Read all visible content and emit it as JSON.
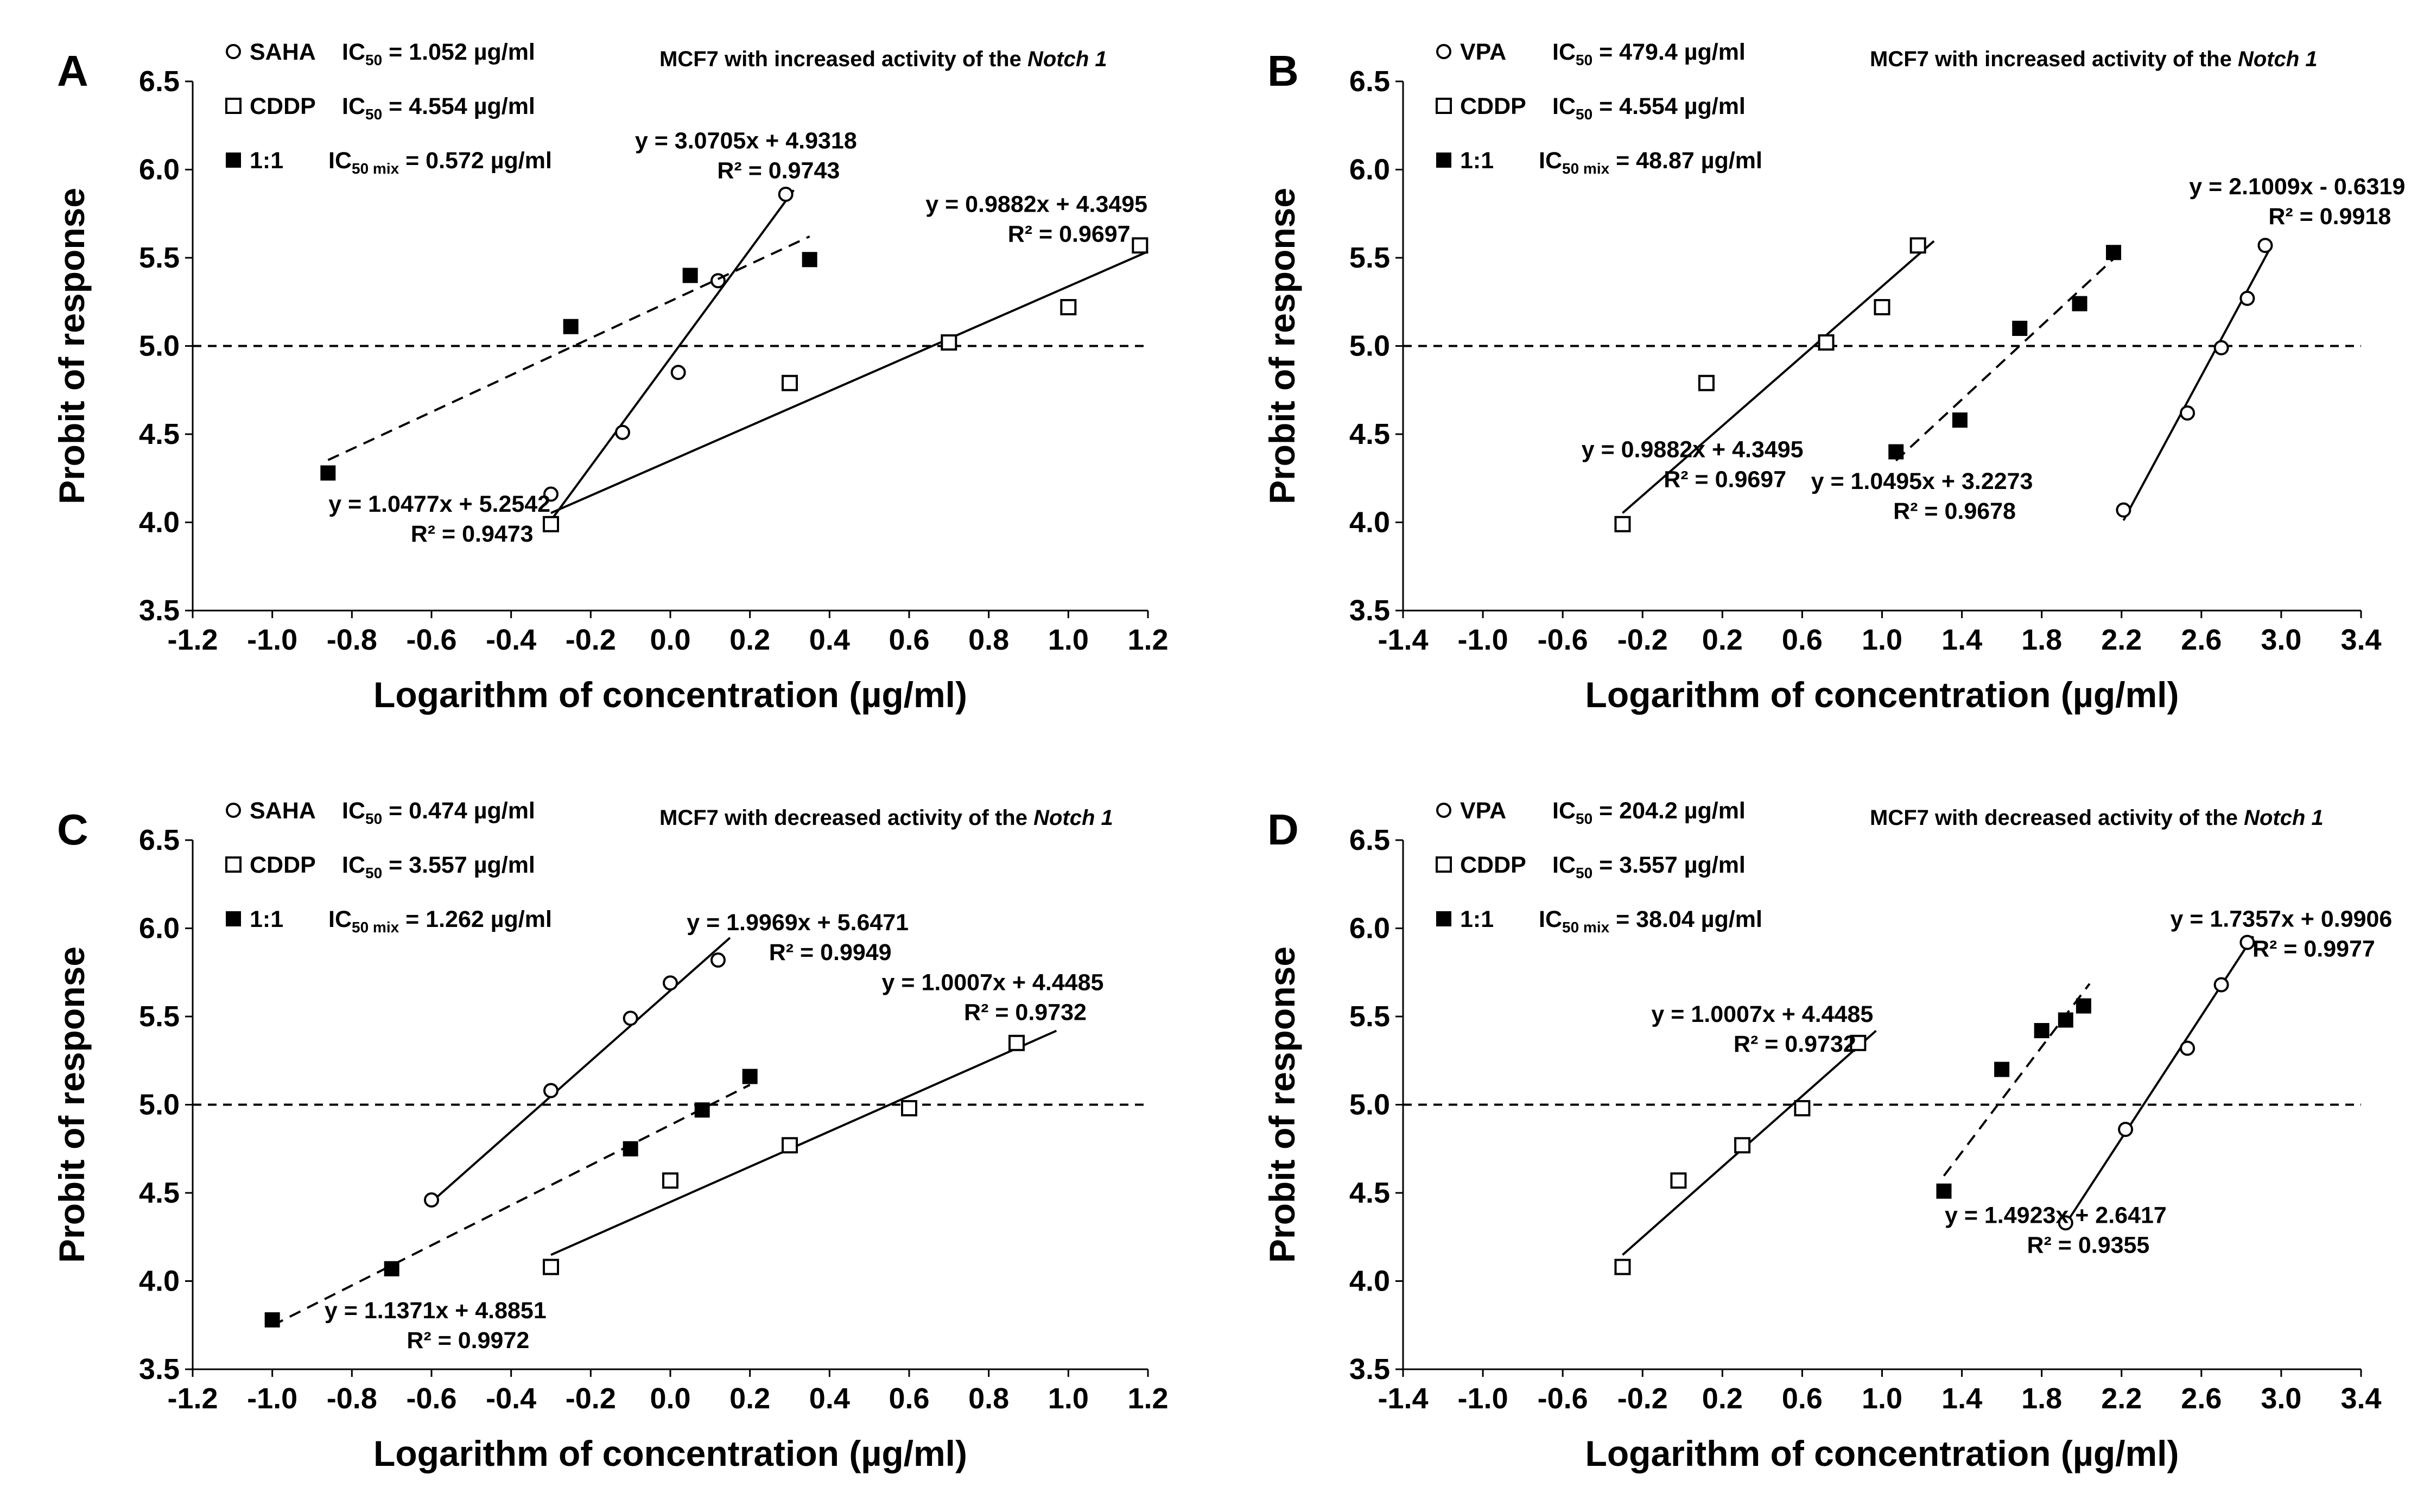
{
  "figure": {
    "xlabel": "Logarithm of concentration (µg/ml)",
    "ylabel": "Probit of response"
  },
  "chart_data": [
    {
      "type": "scatter",
      "panel": "A",
      "title": "MCF7 with increased activity of the",
      "title_gene": "Notch 1",
      "xlim": [
        -1.2,
        1.2
      ],
      "xticks": [
        -1.2,
        -1.0,
        -0.8,
        -0.6,
        -0.4,
        -0.2,
        0.0,
        0.2,
        0.4,
        0.6,
        0.8,
        1.0,
        1.2
      ],
      "xticklabels": [
        "-1.2",
        "-1.0",
        "-0.8",
        "-0.6",
        "-0.4",
        "-0.2",
        "0.0",
        "0.2",
        "0.4",
        "0.6",
        "0.8",
        "1.0",
        "1.2"
      ],
      "ylim": [
        3.5,
        6.5
      ],
      "yticks": [
        3.5,
        4.0,
        4.5,
        5.0,
        5.5,
        6.0,
        6.5
      ],
      "yticklabels": [
        "3.5",
        "4.0",
        "4.5",
        "5.0",
        "5.5",
        "6.0",
        "6.5"
      ],
      "reference_line_y": 5.0,
      "legend": [
        {
          "marker": "circle",
          "label": "SAHA",
          "ic_label": "IC",
          "ic_sub": "50",
          "ic_value": " = 1.052 µg/ml"
        },
        {
          "marker": "square-open",
          "label": "CDDP",
          "ic_label": "IC",
          "ic_sub": "50",
          "ic_value": " = 4.554 µg/ml"
        },
        {
          "marker": "square-filled",
          "label": "1:1",
          "ic_label": "IC",
          "ic_sub": "50 mix",
          "ic_value": " = 0.572 µg/ml"
        }
      ],
      "series": [
        {
          "name": "SAHA",
          "marker": "circle",
          "points": [
            [
              -0.3,
              4.16
            ],
            [
              -0.12,
              4.51
            ],
            [
              0.02,
              4.85
            ],
            [
              0.12,
              5.37
            ],
            [
              0.29,
              5.86
            ]
          ],
          "fit": {
            "slope": 3.0705,
            "intercept": 4.9318,
            "x0": -0.3,
            "x1": 0.31,
            "dashed": false
          },
          "equation": "y = 3.0705x + 4.9318",
          "r2": "R² = 0.9743"
        },
        {
          "name": "CDDP",
          "marker": "square-open",
          "points": [
            [
              -0.3,
              3.99
            ],
            [
              0.3,
              4.79
            ],
            [
              0.7,
              5.02
            ],
            [
              1.0,
              5.22
            ],
            [
              1.18,
              5.57
            ]
          ],
          "fit": {
            "slope": 0.9882,
            "intercept": 4.3495,
            "x0": -0.3,
            "x1": 1.2,
            "dashed": false
          },
          "equation": "y = 0.9882x + 4.3495",
          "r2": "R² = 0.9697"
        },
        {
          "name": "1:1",
          "marker": "square-filled",
          "points": [
            [
              -0.86,
              4.28
            ],
            [
              -0.25,
              5.11
            ],
            [
              0.05,
              5.4
            ],
            [
              0.35,
              5.49
            ]
          ],
          "fit": {
            "slope": 1.0477,
            "intercept": 5.2542,
            "x0": -0.86,
            "x1": 0.35,
            "dashed": true
          },
          "equation": "y = 1.0477x + 5.2542",
          "r2": "R² = 0.9473"
        }
      ]
    },
    {
      "type": "scatter",
      "panel": "B",
      "title": "MCF7 with increased activity of the",
      "title_gene": "Notch 1",
      "xlim": [
        -1.4,
        3.4
      ],
      "xticks": [
        -1.4,
        -1.0,
        -0.6,
        -0.2,
        0.2,
        0.6,
        1.0,
        1.4,
        1.8,
        2.2,
        2.6,
        3.0,
        3.4
      ],
      "xticklabels": [
        "-1.4",
        "-1.0",
        "-0.6",
        "-0.2",
        "0.2",
        "0.6",
        "1.0",
        "1.4",
        "1.8",
        "2.2",
        "2.6",
        "3.0",
        "3.4"
      ],
      "ylim": [
        3.5,
        6.5
      ],
      "yticks": [
        3.5,
        4.0,
        4.5,
        5.0,
        5.5,
        6.0,
        6.5
      ],
      "yticklabels": [
        "3.5",
        "4.0",
        "4.5",
        "5.0",
        "5.5",
        "6.0",
        "6.5"
      ],
      "reference_line_y": 5.0,
      "legend": [
        {
          "marker": "circle",
          "label": "VPA",
          "ic_label": "IC",
          "ic_sub": "50",
          "ic_value": " = 479.4 µg/ml"
        },
        {
          "marker": "square-open",
          "label": "CDDP",
          "ic_label": "IC",
          "ic_sub": "50",
          "ic_value": " = 4.554 µg/ml"
        },
        {
          "marker": "square-filled",
          "label": "1:1",
          "ic_label": "IC",
          "ic_sub": "50 mix",
          "ic_value": " = 48.87 µg/ml"
        }
      ],
      "series": [
        {
          "name": "VPA",
          "marker": "circle",
          "points": [
            [
              2.21,
              4.07
            ],
            [
              2.53,
              4.62
            ],
            [
              2.7,
              4.99
            ],
            [
              2.83,
              5.27
            ],
            [
              2.92,
              5.57
            ]
          ],
          "fit": {
            "slope": 2.1009,
            "intercept": -0.6319,
            "x0": 2.21,
            "x1": 2.95,
            "dashed": false
          },
          "equation": "y = 2.1009x - 0.6319",
          "r2": "R² = 0.9918"
        },
        {
          "name": "CDDP",
          "marker": "square-open",
          "points": [
            [
              -0.3,
              3.99
            ],
            [
              0.12,
              4.79
            ],
            [
              0.72,
              5.02
            ],
            [
              1.0,
              5.22
            ],
            [
              1.18,
              5.57
            ]
          ],
          "fit": {
            "slope": 0.9882,
            "intercept": 4.3495,
            "x0": -0.3,
            "x1": 1.26,
            "dashed": false
          },
          "equation": "y = 0.9882x + 4.3495",
          "r2": "R² = 0.9697"
        },
        {
          "name": "1:1",
          "marker": "square-filled",
          "points": [
            [
              1.07,
              4.4
            ],
            [
              1.39,
              4.58
            ],
            [
              1.69,
              5.1
            ],
            [
              1.99,
              5.24
            ],
            [
              2.16,
              5.53
            ]
          ],
          "fit": {
            "slope": 1.0495,
            "intercept": 3.2273,
            "x0": 1.07,
            "x1": 2.18,
            "dashed": true
          },
          "equation": "y = 1.0495x + 3.2273",
          "r2": "R² = 0.9678"
        }
      ]
    },
    {
      "type": "scatter",
      "panel": "C",
      "title": "MCF7 with decreased activity of the",
      "title_gene": "Notch 1",
      "xlim": [
        -1.2,
        1.2
      ],
      "xticks": [
        -1.2,
        -1.0,
        -0.8,
        -0.6,
        -0.4,
        -0.2,
        0.0,
        0.2,
        0.4,
        0.6,
        0.8,
        1.0,
        1.2
      ],
      "xticklabels": [
        "-1.2",
        "-1.0",
        "-0.8",
        "-0.6",
        "-0.4",
        "-0.2",
        "0.0",
        "0.2",
        "0.4",
        "0.6",
        "0.8",
        "1.0",
        "1.2"
      ],
      "ylim": [
        3.5,
        6.5
      ],
      "yticks": [
        3.5,
        4.0,
        4.5,
        5.0,
        5.5,
        6.0,
        6.5
      ],
      "yticklabels": [
        "3.5",
        "4.0",
        "4.5",
        "5.0",
        "5.5",
        "6.0",
        "6.5"
      ],
      "reference_line_y": 5.0,
      "legend": [
        {
          "marker": "circle",
          "label": "SAHA",
          "ic_label": "IC",
          "ic_sub": "50",
          "ic_value": " = 0.474 µg/ml"
        },
        {
          "marker": "square-open",
          "label": "CDDP",
          "ic_label": "IC",
          "ic_sub": "50",
          "ic_value": " = 3.557 µg/ml"
        },
        {
          "marker": "square-filled",
          "label": "1:1",
          "ic_label": "IC",
          "ic_sub": "50 mix",
          "ic_value": " = 1.262 µg/ml"
        }
      ],
      "series": [
        {
          "name": "SAHA",
          "marker": "circle",
          "points": [
            [
              -0.6,
              4.46
            ],
            [
              -0.3,
              5.08
            ],
            [
              -0.1,
              5.49
            ],
            [
              0.0,
              5.69
            ],
            [
              0.12,
              5.82
            ]
          ],
          "fit": {
            "slope": 1.9969,
            "intercept": 5.6471,
            "x0": -0.6,
            "x1": 0.15,
            "dashed": false
          },
          "equation": "y = 1.9969x + 5.6471",
          "r2": "R² = 0.9949"
        },
        {
          "name": "CDDP",
          "marker": "square-open",
          "points": [
            [
              -0.3,
              4.08
            ],
            [
              0.0,
              4.57
            ],
            [
              0.3,
              4.77
            ],
            [
              0.6,
              4.98
            ],
            [
              0.87,
              5.35
            ]
          ],
          "fit": {
            "slope": 1.0007,
            "intercept": 4.4485,
            "x0": -0.3,
            "x1": 0.97,
            "dashed": false
          },
          "equation": "y = 1.0007x + 4.4485",
          "r2": "R² = 0.9732"
        },
        {
          "name": "1:1",
          "marker": "square-filled",
          "points": [
            [
              -1.0,
              3.78
            ],
            [
              -0.7,
              4.07
            ],
            [
              -0.1,
              4.75
            ],
            [
              0.08,
              4.97
            ],
            [
              0.2,
              5.16
            ]
          ],
          "fit": {
            "slope": 1.1371,
            "intercept": 4.8851,
            "x0": -1.0,
            "x1": 0.2,
            "dashed": true
          },
          "equation": "y = 1.1371x + 4.8851",
          "r2": "R² = 0.9972"
        }
      ]
    },
    {
      "type": "scatter",
      "panel": "D",
      "title": "MCF7 with decreased activity of the",
      "title_gene": "Notch 1",
      "xlim": [
        -1.4,
        3.4
      ],
      "xticks": [
        -1.4,
        -1.0,
        -0.6,
        -0.2,
        0.2,
        0.6,
        1.0,
        1.4,
        1.8,
        2.2,
        2.6,
        3.0,
        3.4
      ],
      "xticklabels": [
        "-1.4",
        "-1.0",
        "-0.6",
        "-0.2",
        "0.2",
        "0.6",
        "1.0",
        "1.4",
        "1.8",
        "2.2",
        "2.6",
        "3.0",
        "3.4"
      ],
      "ylim": [
        3.5,
        6.5
      ],
      "yticks": [
        3.5,
        4.0,
        4.5,
        5.0,
        5.5,
        6.0,
        6.5
      ],
      "yticklabels": [
        "3.5",
        "4.0",
        "4.5",
        "5.0",
        "5.5",
        "6.0",
        "6.5"
      ],
      "reference_line_y": 5.0,
      "legend": [
        {
          "marker": "circle",
          "label": "VPA",
          "ic_label": "IC",
          "ic_sub": "50",
          "ic_value": " = 204.2 µg/ml"
        },
        {
          "marker": "square-open",
          "label": "CDDP",
          "ic_label": "IC",
          "ic_sub": "50",
          "ic_value": " = 3.557 µg/ml"
        },
        {
          "marker": "square-filled",
          "label": "1:1",
          "ic_label": "IC",
          "ic_sub": "50 mix",
          "ic_value": " = 38.04 µg/ml"
        }
      ],
      "series": [
        {
          "name": "VPA",
          "marker": "circle",
          "points": [
            [
              1.92,
              4.33
            ],
            [
              2.22,
              4.86
            ],
            [
              2.53,
              5.32
            ],
            [
              2.7,
              5.68
            ],
            [
              2.83,
              5.92
            ]
          ],
          "fit": {
            "slope": 1.7357,
            "intercept": 0.9906,
            "x0": 1.92,
            "x1": 2.86,
            "dashed": false
          },
          "equation": "y = 1.7357x + 0.9906",
          "r2": "R² = 0.9977"
        },
        {
          "name": "CDDP",
          "marker": "square-open",
          "points": [
            [
              -0.3,
              4.08
            ],
            [
              -0.02,
              4.57
            ],
            [
              0.3,
              4.77
            ],
            [
              0.6,
              4.98
            ],
            [
              0.88,
              5.35
            ]
          ],
          "fit": {
            "slope": 1.0007,
            "intercept": 4.4485,
            "x0": -0.3,
            "x1": 0.97,
            "dashed": false
          },
          "equation": "y = 1.0007x + 4.4485",
          "r2": "R² = 0.9732"
        },
        {
          "name": "1:1",
          "marker": "square-filled",
          "points": [
            [
              1.31,
              4.51
            ],
            [
              1.6,
              5.2
            ],
            [
              1.8,
              5.42
            ],
            [
              1.92,
              5.48
            ],
            [
              2.01,
              5.56
            ]
          ],
          "fit": {
            "slope": 1.4923,
            "intercept": 2.6417,
            "x0": 1.31,
            "x1": 2.04,
            "dashed": true
          },
          "equation": "y = 1.4923x + 2.6417",
          "r2": "R² = 0.9355"
        }
      ]
    }
  ]
}
